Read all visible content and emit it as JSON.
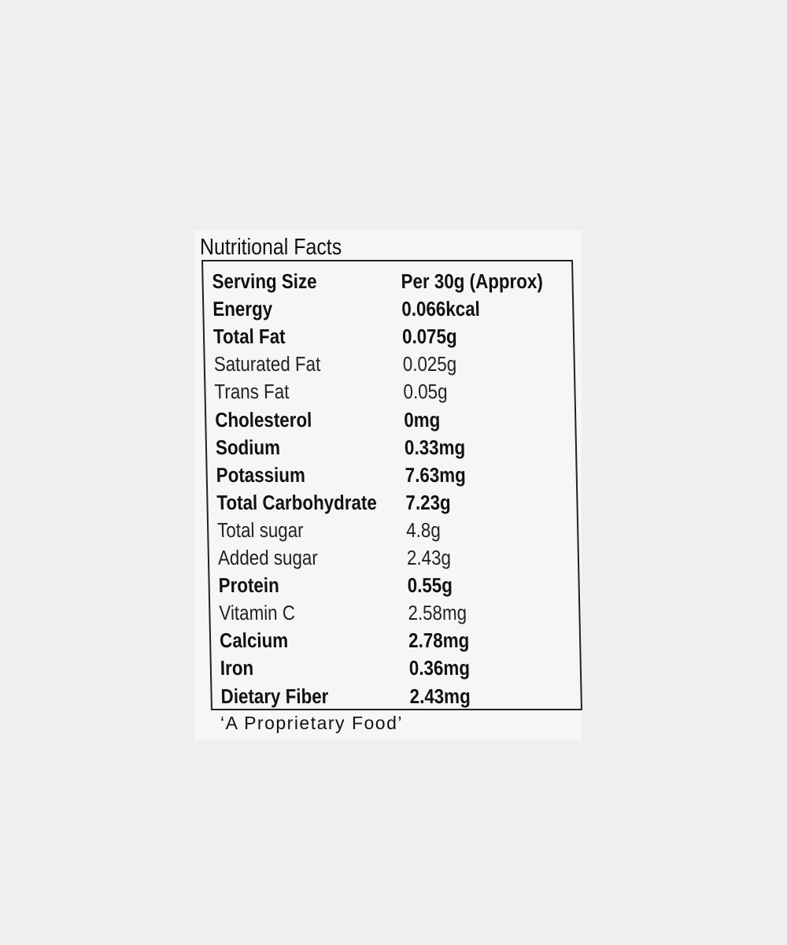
{
  "title": "Nutritional Facts",
  "rows": [
    {
      "label": "Serving Size",
      "value": "Per 30g (Approx)",
      "bold": true
    },
    {
      "label": "Energy",
      "value": "0.066kcal",
      "bold": true
    },
    {
      "label": "Total Fat",
      "value": "0.075g",
      "bold": true
    },
    {
      "label": "Saturated Fat",
      "value": "0.025g",
      "bold": false
    },
    {
      "label": "Trans Fat",
      "value": "0.05g",
      "bold": false
    },
    {
      "label": "Cholesterol",
      "value": "0mg",
      "bold": true
    },
    {
      "label": "Sodium",
      "value": "0.33mg",
      "bold": true
    },
    {
      "label": "Potassium",
      "value": "7.63mg",
      "bold": true
    },
    {
      "label": "Total Carbohydrate",
      "value": "7.23g",
      "bold": true
    },
    {
      "label": "Total sugar",
      "value": "4.8g",
      "bold": false
    },
    {
      "label": "Added sugar",
      "value": "2.43g",
      "bold": false
    },
    {
      "label": "Protein",
      "value": "0.55g",
      "bold": true
    },
    {
      "label": "Vitamin C",
      "value": "2.58mg",
      "bold": false
    },
    {
      "label": "Calcium",
      "value": "2.78mg",
      "bold": true
    },
    {
      "label": "Iron",
      "value": "0.36mg",
      "bold": true
    },
    {
      "label": "Dietary Fiber",
      "value": "2.43mg",
      "bold": true
    }
  ],
  "footer": "‘A Proprietary Food’"
}
